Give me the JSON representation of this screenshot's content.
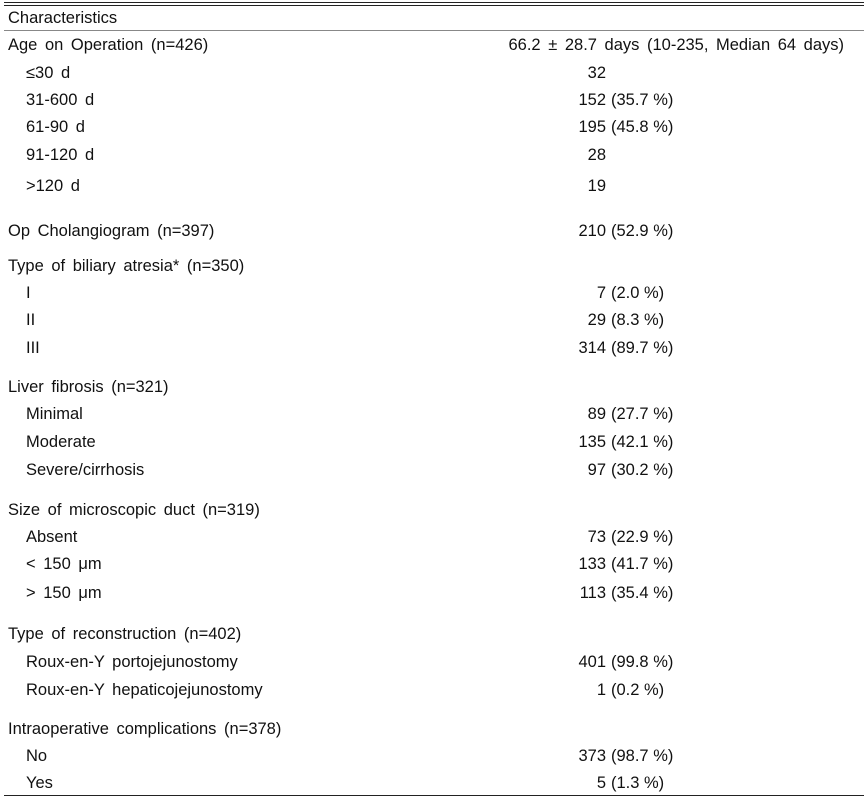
{
  "table": {
    "header": "Characteristics",
    "age_row": {
      "label": "Age on Operation (n=426)",
      "value": "66.2 ± 28.7 days (10-235, Median 64 days)"
    },
    "rows": [
      {
        "label": "≤30 d",
        "sub": true,
        "n": "32",
        "pct": ""
      },
      {
        "label": "31-600 d",
        "sub": true,
        "n": "152",
        "pct": "(35.7 %)"
      },
      {
        "label": "61-90 d",
        "sub": true,
        "n": "195",
        "pct": "(45.8 %)"
      },
      {
        "label": "91-120 d",
        "sub": true,
        "n": "28",
        "pct": ""
      },
      {
        "label": ">120 d",
        "sub": true,
        "n": "19",
        "pct": ""
      },
      {
        "label": "Op Cholangiogram (n=397)",
        "sub": false,
        "n": "210",
        "pct": "(52.9 %)"
      },
      {
        "label": "Type of biliary atresia* (n=350)",
        "sub": false,
        "n": "",
        "pct": ""
      },
      {
        "label": "I",
        "sub": true,
        "n": "7",
        "pct": "(2.0 %)"
      },
      {
        "label": "II",
        "sub": true,
        "n": "29",
        "pct": "(8.3 %)"
      },
      {
        "label": "III",
        "sub": true,
        "n": "314",
        "pct": "(89.7 %)"
      },
      {
        "label": "Liver fibrosis (n=321)",
        "sub": false,
        "n": "",
        "pct": ""
      },
      {
        "label": "Minimal",
        "sub": true,
        "n": "89",
        "pct": "(27.7 %)"
      },
      {
        "label": "Moderate",
        "sub": true,
        "n": "135",
        "pct": "(42.1 %)"
      },
      {
        "label": "Severe/cirrhosis",
        "sub": true,
        "n": "97",
        "pct": "(30.2 %)"
      },
      {
        "label": "Size of microscopic duct (n=319)",
        "sub": false,
        "n": "",
        "pct": ""
      },
      {
        "label": "Absent",
        "sub": true,
        "n": "73",
        "pct": "(22.9 %)"
      },
      {
        "label": "< 150 μm",
        "sub": true,
        "n": "133",
        "pct": "(41.7 %)"
      },
      {
        "label": "> 150 μm",
        "sub": true,
        "n": "113",
        "pct": "(35.4 %)"
      },
      {
        "label": "Type of reconstruction (n=402)",
        "sub": false,
        "n": "",
        "pct": ""
      },
      {
        "label": "Roux-en-Y portojejunostomy",
        "sub": true,
        "n": "401",
        "pct": "(99.8 %)"
      },
      {
        "label": "Roux-en-Y hepaticojejunostomy",
        "sub": true,
        "n": "1",
        "pct": "(0.2 %)"
      },
      {
        "label": "Intraoperative complications (n=378)",
        "sub": false,
        "n": "",
        "pct": ""
      },
      {
        "label": "No",
        "sub": true,
        "n": "373",
        "pct": "(98.7 %)"
      },
      {
        "label": "Yes",
        "sub": true,
        "n": "5",
        "pct": "(1.3 %)"
      }
    ]
  }
}
